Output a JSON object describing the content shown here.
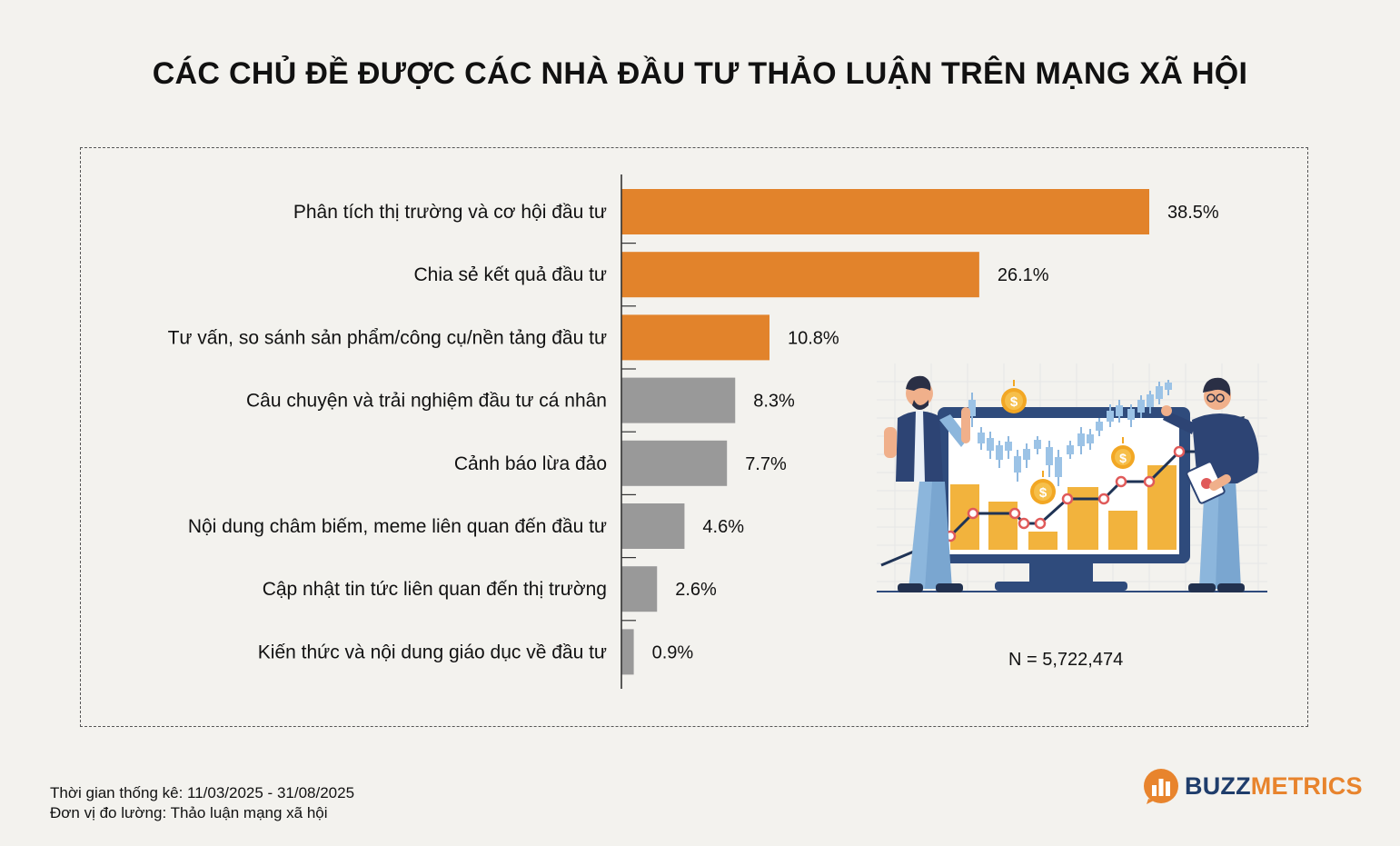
{
  "title": "CÁC CHỦ ĐỀ ĐƯỢC CÁC NHÀ ĐẦU TƯ THẢO LUẬN TRÊN MẠNG XÃ HỘI",
  "colors": {
    "highlight": "#e2832b",
    "other": "#999999",
    "axis": "#333333"
  },
  "chart_data": {
    "type": "bar",
    "orientation": "horizontal",
    "title": "CÁC CHỦ ĐỀ ĐƯỢC CÁC NHÀ ĐẦU TƯ THẢO LUẬN TRÊN MẠNG XÃ HỘI",
    "categories": [
      "Phân tích thị trường và cơ hội đầu tư",
      "Chia sẻ kết quả đầu tư",
      "Tư vấn, so sánh sản phẩm/công cụ/nền tảng đầu tư",
      "Câu chuyện và trải nghiệm đầu tư cá nhân",
      "Cảnh báo lừa đảo",
      "Nội dung châm biếm, meme liên quan đến đầu tư",
      "Cập nhật tin tức liên quan đến thị trường",
      "Kiến thức và nội dung giáo dục về đầu tư"
    ],
    "values": [
      38.5,
      26.1,
      10.8,
      8.3,
      7.7,
      4.6,
      2.6,
      0.9
    ],
    "value_labels": [
      "38.5%",
      "26.1%",
      "10.8%",
      "8.3%",
      "7.7%",
      "4.6%",
      "2.6%",
      "0.9%"
    ],
    "highlighted_count": 3,
    "xlim": [
      0,
      38.5
    ],
    "xlabel": "",
    "ylabel": "",
    "grid": false
  },
  "sample_size": "N = 5,722,474",
  "footer": {
    "period": "Thời gian thống kê: 11/03/2025 - 31/08/2025",
    "unit": "Đơn vị đo lường: Thảo luận mạng xã hội"
  },
  "brand": {
    "part1": "BUZZ",
    "part2": "METRICS"
  },
  "illustration": {
    "coin_symbol": "$"
  }
}
